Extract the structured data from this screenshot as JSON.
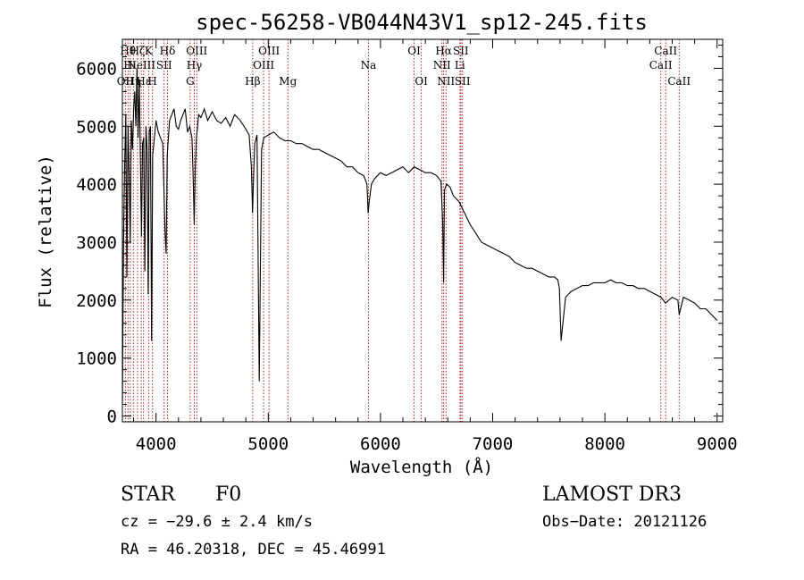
{
  "chart_data": {
    "type": "line",
    "title": "spec-56258-VB044N43V1_sp12-245.fits",
    "xlabel": "Wavelength (Å)",
    "ylabel": "Flux (relative)",
    "xlim": [
      3700,
      9050
    ],
    "ylim": [
      -100,
      6500
    ],
    "xticks": [
      "4000",
      "5000",
      "6000",
      "7000",
      "8000",
      "9000"
    ],
    "yticks": [
      "0",
      "1000",
      "2000",
      "3000",
      "4000",
      "5000",
      "6000"
    ],
    "grid": false,
    "series": [
      {
        "x": [
          3700,
          3710,
          3720,
          3730,
          3740,
          3750,
          3760,
          3770,
          3780,
          3790,
          3800,
          3810,
          3820,
          3830,
          3840,
          3850,
          3860,
          3870,
          3880,
          3890,
          3900,
          3910,
          3920,
          3930,
          3940,
          3950,
          3960,
          3970,
          3980,
          3990,
          4000,
          4020,
          4040,
          4060,
          4080,
          4090,
          4100,
          4110,
          4120,
          4140,
          4160,
          4180,
          4200,
          4220,
          4240,
          4260,
          4280,
          4300,
          4320,
          4330,
          4340,
          4350,
          4360,
          4380,
          4400,
          4430,
          4460,
          4500,
          4540,
          4580,
          4620,
          4660,
          4700,
          4750,
          4800,
          4830,
          4850,
          4860,
          4870,
          4880,
          4900,
          4920,
          4940,
          4960,
          5000,
          5050,
          5100,
          5150,
          5200,
          5250,
          5300,
          5350,
          5400,
          5450,
          5500,
          5550,
          5600,
          5650,
          5700,
          5750,
          5800,
          5850,
          5880,
          5890,
          5900,
          5920,
          5950,
          6000,
          6050,
          6100,
          6150,
          6200,
          6250,
          6300,
          6350,
          6400,
          6450,
          6500,
          6540,
          6555,
          6563,
          6570,
          6590,
          6620,
          6650,
          6700,
          6750,
          6800,
          6850,
          6900,
          6950,
          7000,
          7050,
          7100,
          7150,
          7200,
          7250,
          7300,
          7350,
          7400,
          7450,
          7500,
          7550,
          7580,
          7595,
          7610,
          7650,
          7700,
          7750,
          7800,
          7850,
          7900,
          7950,
          8000,
          8050,
          8100,
          8150,
          8200,
          8250,
          8300,
          8350,
          8400,
          8450,
          8500,
          8540,
          8600,
          8650,
          8662,
          8700,
          8750,
          8800,
          8850,
          8900,
          8950,
          9000
        ],
        "y": [
          200,
          3000,
          4300,
          5200,
          2400,
          5000,
          4200,
          3000,
          5100,
          4600,
          5300,
          5600,
          5000,
          6000,
          4800,
          5800,
          4500,
          3100,
          4700,
          4800,
          2500,
          5000,
          4600,
          2100,
          4900,
          5000,
          1300,
          4500,
          4700,
          4900,
          5100,
          4900,
          4800,
          4700,
          3200,
          2800,
          4500,
          4800,
          5100,
          5200,
          5300,
          5000,
          4950,
          5100,
          5200,
          5300,
          4900,
          5000,
          4800,
          4200,
          3300,
          4300,
          4800,
          5200,
          5150,
          5300,
          5100,
          5250,
          5100,
          5050,
          5150,
          5000,
          5200,
          5100,
          4950,
          4850,
          4300,
          3500,
          4200,
          4700,
          4850,
          600,
          4600,
          4800,
          4850,
          4900,
          4800,
          4750,
          4750,
          4700,
          4700,
          4650,
          4600,
          4600,
          4550,
          4500,
          4450,
          4400,
          4300,
          4300,
          4200,
          4150,
          4000,
          3500,
          3700,
          4000,
          4100,
          4200,
          4150,
          4200,
          4250,
          4300,
          4200,
          4300,
          4250,
          4200,
          4200,
          4150,
          4050,
          3300,
          2300,
          3900,
          4000,
          3950,
          3800,
          3700,
          3500,
          3300,
          3150,
          3000,
          2950,
          2900,
          2850,
          2800,
          2750,
          2650,
          2600,
          2550,
          2550,
          2500,
          2450,
          2400,
          2400,
          2350,
          2200,
          1300,
          2050,
          2150,
          2200,
          2250,
          2250,
          2300,
          2300,
          2300,
          2350,
          2300,
          2300,
          2250,
          2250,
          2200,
          2200,
          2150,
          2100,
          2050,
          1950,
          2050,
          2000,
          1750,
          2050,
          2000,
          1950,
          1850,
          1850,
          1750,
          1650
        ]
      }
    ],
    "lines": [
      {
        "wl": 3727,
        "label": "OII",
        "row": 2
      },
      {
        "wl": 3750,
        "label": "Hθ",
        "row": 0
      },
      {
        "wl": 3770,
        "label": "Hι",
        "row": 1
      },
      {
        "wl": 3798,
        "label": "Hη",
        "row": 2
      },
      {
        "wl": 3835,
        "label": "Hζ",
        "row": 0
      },
      {
        "wl": 3869,
        "label": "NeIII",
        "row": 1
      },
      {
        "wl": 3889,
        "label": "Hε",
        "row": 2
      },
      {
        "wl": 3934,
        "label": "K",
        "row": 0
      },
      {
        "wl": 3968,
        "label": "H",
        "row": 2
      },
      {
        "wl": 4072,
        "label": "SII",
        "row": 1
      },
      {
        "wl": 4102,
        "label": "Hδ",
        "row": 0
      },
      {
        "wl": 4304,
        "label": "G",
        "row": 2
      },
      {
        "wl": 4341,
        "label": "Hγ",
        "row": 1
      },
      {
        "wl": 4363,
        "label": "OIII",
        "row": 0
      },
      {
        "wl": 4861,
        "label": "Hβ",
        "row": 2
      },
      {
        "wl": 4959,
        "label": "OIII",
        "row": 1
      },
      {
        "wl": 5007,
        "label": "OIII",
        "row": 0
      },
      {
        "wl": 5175,
        "label": "Mg",
        "row": 2
      },
      {
        "wl": 5893,
        "label": "Na",
        "row": 1
      },
      {
        "wl": 6300,
        "label": "OI",
        "row": 0
      },
      {
        "wl": 6364,
        "label": "OI",
        "row": 2
      },
      {
        "wl": 6548,
        "label": "NII",
        "row": 1
      },
      {
        "wl": 6563,
        "label": "Hα",
        "row": 0
      },
      {
        "wl": 6584,
        "label": "NII",
        "row": 2
      },
      {
        "wl": 6708,
        "label": "Li",
        "row": 1
      },
      {
        "wl": 6716,
        "label": "SII",
        "row": 0
      },
      {
        "wl": 6731,
        "label": "SII",
        "row": 2
      },
      {
        "wl": 8498,
        "label": "CaII",
        "row": 1
      },
      {
        "wl": 8542,
        "label": "CaII",
        "row": 0
      },
      {
        "wl": 8662,
        "label": "CaII",
        "row": 2
      }
    ]
  },
  "info": {
    "class": "STAR",
    "subclass": "F0",
    "survey": "LAMOST DR3",
    "cz": "cz = −29.6 ± 2.4 km/s",
    "obs_date": "Obs−Date: 20121126",
    "radec": "RA =  46.20318, DEC =  45.46991"
  }
}
